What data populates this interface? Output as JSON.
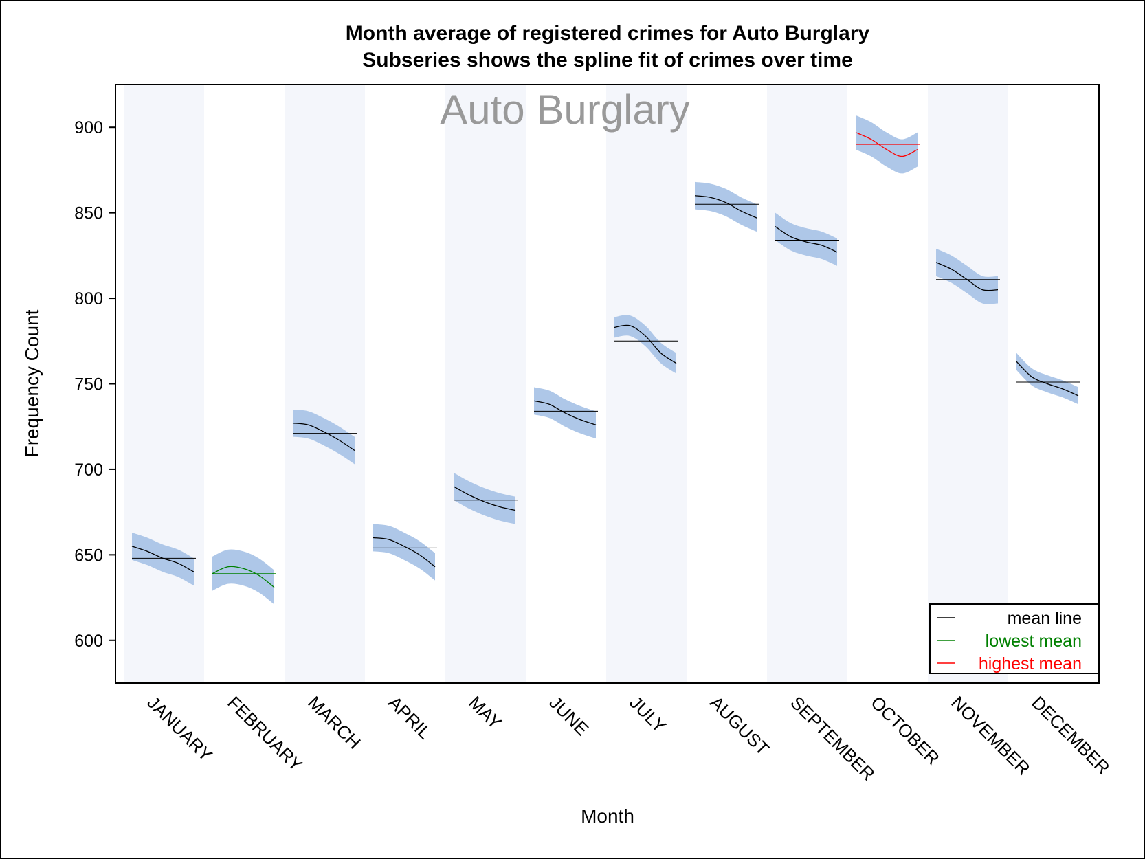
{
  "chart_data": {
    "type": "line",
    "title": "Month average of registered crimes for Auto Burglary",
    "subtitle": "Subseries shows the spline fit of crimes over time",
    "watermark": "Auto Burglary",
    "xlabel": "Month",
    "ylabel": "Frequency Count",
    "ylim": [
      575,
      925
    ],
    "yticks": [
      600,
      650,
      700,
      750,
      800,
      850,
      900
    ],
    "grid": false,
    "legend_position": "bottom-right",
    "band_color": "#f4f6fb",
    "ci_color": "#aec7e8",
    "months": [
      {
        "label": "JANUARY",
        "mean": 648,
        "spline": [
          655,
          652,
          648,
          645,
          640
        ],
        "ci_halfwidth": 8,
        "status": "mean"
      },
      {
        "label": "FEBRUARY",
        "mean": 639,
        "spline": [
          639,
          643,
          642,
          638,
          631
        ],
        "ci_halfwidth": 10,
        "status": "lowest"
      },
      {
        "label": "MARCH",
        "mean": 721,
        "spline": [
          727,
          726,
          722,
          717,
          711
        ],
        "ci_halfwidth": 8,
        "status": "mean"
      },
      {
        "label": "APRIL",
        "mean": 654,
        "spline": [
          660,
          659,
          655,
          650,
          643
        ],
        "ci_halfwidth": 8,
        "status": "mean"
      },
      {
        "label": "MAY",
        "mean": 682,
        "spline": [
          690,
          685,
          681,
          678,
          676
        ],
        "ci_halfwidth": 8,
        "status": "mean"
      },
      {
        "label": "JUNE",
        "mean": 734,
        "spline": [
          740,
          738,
          733,
          729,
          726
        ],
        "ci_halfwidth": 8,
        "status": "mean"
      },
      {
        "label": "JULY",
        "mean": 775,
        "spline": [
          783,
          784,
          778,
          768,
          762
        ],
        "ci_halfwidth": 6,
        "status": "mean"
      },
      {
        "label": "AUGUST",
        "mean": 855,
        "spline": [
          860,
          859,
          856,
          851,
          847
        ],
        "ci_halfwidth": 8,
        "status": "mean"
      },
      {
        "label": "SEPTEMBER",
        "mean": 834,
        "spline": [
          842,
          836,
          833,
          831,
          827
        ],
        "ci_halfwidth": 8,
        "status": "mean"
      },
      {
        "label": "OCTOBER",
        "mean": 890,
        "spline": [
          897,
          893,
          887,
          883,
          887
        ],
        "ci_halfwidth": 10,
        "status": "highest"
      },
      {
        "label": "NOVEMBER",
        "mean": 811,
        "spline": [
          821,
          817,
          811,
          805,
          805
        ],
        "ci_halfwidth": 8,
        "status": "mean"
      },
      {
        "label": "DECEMBER",
        "mean": 751,
        "spline": [
          763,
          754,
          750,
          747,
          743
        ],
        "ci_halfwidth": 5,
        "status": "mean"
      }
    ],
    "legend": [
      {
        "label": "mean line",
        "color": "#000000"
      },
      {
        "label": "lowest mean",
        "color": "#008000"
      },
      {
        "label": "highest mean",
        "color": "#ff0000"
      }
    ],
    "status_colors": {
      "mean": "#000000",
      "lowest": "#008000",
      "highest": "#ff0000"
    }
  }
}
